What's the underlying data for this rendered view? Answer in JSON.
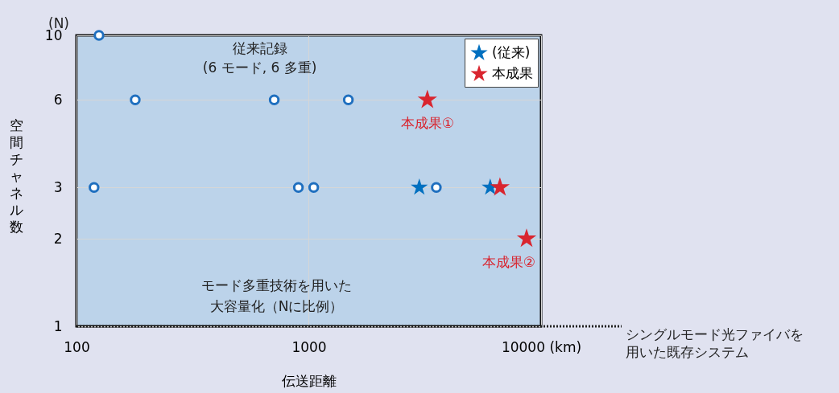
{
  "chart_data": {
    "type": "scatter",
    "xlabel": "伝送距離",
    "ylabel": "空間チャネル数",
    "log": "xy",
    "grid": true,
    "legend": "top right",
    "xlim": [
      100,
      10000
    ],
    "ylim": [
      1,
      10
    ],
    "xticks": [
      100,
      1000,
      {
        "value": 10000,
        "label": "10000 (km)"
      }
    ],
    "yticks": [
      1,
      2,
      3,
      6,
      10
    ],
    "series": [
      {
        "color": "#1f6fbf",
        "marker": "circle",
        "x": [
          125,
          119,
          179,
          710,
          1480,
          902,
          1050,
          3540
        ],
        "values": [
          10,
          3,
          6,
          6,
          6,
          3,
          3,
          3
        ]
      },
      {
        "name": "(従来)",
        "color": "#0070c0",
        "marker": "star",
        "x": [
          2990,
          6040
        ],
        "values": [
          3,
          3
        ]
      },
      {
        "name": "本成果",
        "color": "#d9252f",
        "marker": "star",
        "x": [
          3240,
          6650,
          8660
        ],
        "values": [
          6,
          3,
          2
        ]
      }
    ],
    "ref_lines": [
      {
        "axis": "y",
        "value": 1,
        "label": "シングルモード光ファイバを用いた既存システム",
        "line_style": "dotted",
        "color": "#222222"
      }
    ],
    "annotations": [
      "(N)",
      {
        "text": "従来記録\n(6 モード, 6 多重)",
        "x": 1480,
        "y": 6
      },
      {
        "text": "本成果①",
        "x": 3240,
        "y": 6
      },
      {
        "text": "本成果②",
        "x": 8660,
        "y": 2
      },
      "モード多重技術を用いた大容量化（Nに比例）"
    ]
  }
}
